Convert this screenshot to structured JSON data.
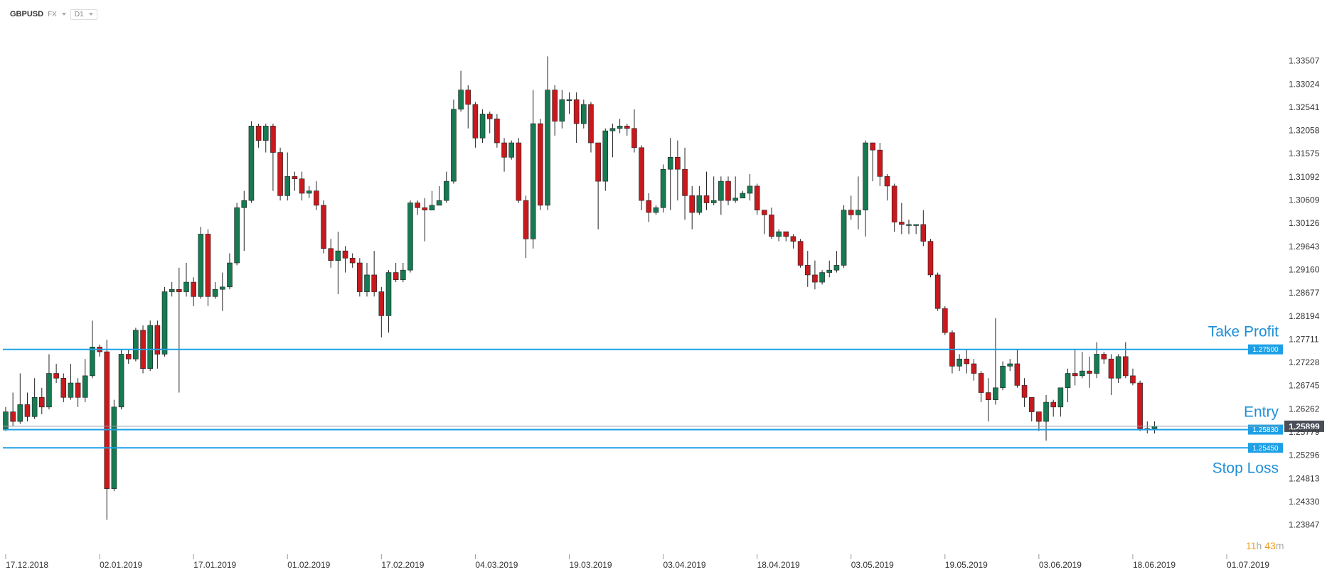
{
  "toolbar": {
    "symbol": "GBPUSD",
    "market": "FX",
    "timeframe": "D1"
  },
  "timer": {
    "hours": "11",
    "h_unit": "h",
    "minutes": "43",
    "m_unit": "m"
  },
  "colors": {
    "up": "#167a52",
    "down": "#c8191d",
    "level_line": "#1ea0e6",
    "level_tag": "#1ea0e6",
    "price_tag": "#4a4e57",
    "annotation": "#1e8fd6",
    "timer": "#f0a020"
  },
  "chart_data": {
    "type": "candlestick",
    "ylim": [
      1.2359,
      1.3399
    ],
    "y_ticks": [
      "1.33507",
      "1.33024",
      "1.32541",
      "1.32058",
      "1.31575",
      "1.31092",
      "1.30609",
      "1.30126",
      "1.29643",
      "1.29160",
      "1.28677",
      "1.28194",
      "1.27711",
      "1.27228",
      "1.26745",
      "1.26262",
      "1.25779",
      "1.25296",
      "1.24813",
      "1.24330",
      "1.23847"
    ],
    "x_tick_labels": [
      "17.12.2018",
      "02.01.2019",
      "17.01.2019",
      "01.02.2019",
      "17.02.2019",
      "04.03.2019",
      "19.03.2019",
      "03.04.2019",
      "18.04.2019",
      "03.05.2019",
      "19.05.2019",
      "03.06.2019",
      "18.06.2019",
      "01.07.2019"
    ],
    "x_tick_index": [
      0,
      13,
      26,
      39,
      52,
      65,
      78,
      91,
      104,
      117,
      130,
      143,
      156,
      169
    ],
    "last_price": "1.25899",
    "levels": [
      {
        "name": "take-profit",
        "price": 1.275,
        "tag": "1.27500",
        "label": "Take Profit"
      },
      {
        "name": "entry",
        "price": 1.2583,
        "tag": "1.25830",
        "label": "Entry"
      },
      {
        "name": "stop-loss",
        "price": 1.2545,
        "tag": "1.25450",
        "label": "Stop Loss"
      }
    ],
    "candles": [
      [
        1.2585,
        1.262,
        1.263,
        1.258
      ],
      [
        1.262,
        1.26,
        1.266,
        1.259
      ],
      [
        1.26,
        1.2635,
        1.27,
        1.2595
      ],
      [
        1.2635,
        1.261,
        1.266,
        1.26
      ],
      [
        1.261,
        1.265,
        1.269,
        1.2605
      ],
      [
        1.265,
        1.263,
        1.267,
        1.2615
      ],
      [
        1.263,
        1.27,
        1.274,
        1.2625
      ],
      [
        1.27,
        1.269,
        1.272,
        1.268
      ],
      [
        1.269,
        1.265,
        1.27,
        1.264
      ],
      [
        1.265,
        1.268,
        1.272,
        1.2645
      ],
      [
        1.268,
        1.265,
        1.269,
        1.263
      ],
      [
        1.265,
        1.2695,
        1.273,
        1.264
      ],
      [
        1.2695,
        1.2755,
        1.281,
        1.269
      ],
      [
        1.2755,
        1.2745,
        1.276,
        1.2735
      ],
      [
        1.2745,
        1.246,
        1.277,
        1.2395
      ],
      [
        1.246,
        1.263,
        1.2645,
        1.2455
      ],
      [
        1.263,
        1.274,
        1.275,
        1.2625
      ],
      [
        1.274,
        1.273,
        1.275,
        1.272
      ],
      [
        1.273,
        1.279,
        1.2795,
        1.2725
      ],
      [
        1.279,
        1.271,
        1.28,
        1.27
      ],
      [
        1.271,
        1.28,
        1.281,
        1.2705
      ],
      [
        1.28,
        1.274,
        1.281,
        1.271
      ],
      [
        1.274,
        1.287,
        1.288,
        1.2735
      ],
      [
        1.287,
        1.2875,
        1.289,
        1.286
      ],
      [
        1.2875,
        1.287,
        1.292,
        1.266
      ],
      [
        1.287,
        1.289,
        1.293,
        1.286
      ],
      [
        1.289,
        1.286,
        1.29,
        1.284
      ],
      [
        1.286,
        1.299,
        1.3005,
        1.2855
      ],
      [
        1.299,
        1.286,
        1.3,
        1.284
      ],
      [
        1.286,
        1.2875,
        1.289,
        1.2855
      ],
      [
        1.2875,
        1.288,
        1.291,
        1.283
      ],
      [
        1.288,
        1.293,
        1.295,
        1.2875
      ],
      [
        1.293,
        1.3045,
        1.3055,
        1.2925
      ],
      [
        1.3045,
        1.306,
        1.308,
        1.2955
      ],
      [
        1.306,
        1.3215,
        1.3225,
        1.3055
      ],
      [
        1.3215,
        1.3185,
        1.322,
        1.317
      ],
      [
        1.3185,
        1.3215,
        1.322,
        1.316
      ],
      [
        1.3215,
        1.316,
        1.322,
        1.308
      ],
      [
        1.316,
        1.307,
        1.317,
        1.306
      ],
      [
        1.307,
        1.311,
        1.316,
        1.306
      ],
      [
        1.311,
        1.3105,
        1.312,
        1.308
      ],
      [
        1.3105,
        1.3075,
        1.312,
        1.306
      ],
      [
        1.3075,
        1.308,
        1.309,
        1.3065
      ],
      [
        1.308,
        1.305,
        1.31,
        1.304
      ],
      [
        1.305,
        1.296,
        1.306,
        1.295
      ],
      [
        1.296,
        1.2935,
        1.298,
        1.292
      ],
      [
        1.2935,
        1.2955,
        1.2995,
        1.2865
      ],
      [
        1.2955,
        1.294,
        1.2965,
        1.291
      ],
      [
        1.294,
        1.293,
        1.295,
        1.292
      ],
      [
        1.293,
        1.287,
        1.294,
        1.286
      ],
      [
        1.287,
        1.2905,
        1.293,
        1.286
      ],
      [
        1.2905,
        1.287,
        1.2955,
        1.286
      ],
      [
        1.287,
        1.282,
        1.288,
        1.2775
      ],
      [
        1.282,
        1.291,
        1.2915,
        1.2785
      ],
      [
        1.291,
        1.2895,
        1.293,
        1.289
      ],
      [
        1.2895,
        1.2915,
        1.293,
        1.289
      ],
      [
        1.2915,
        1.3055,
        1.306,
        1.291
      ],
      [
        1.3055,
        1.3045,
        1.306,
        1.303
      ],
      [
        1.3045,
        1.304,
        1.3065,
        1.2975
      ],
      [
        1.304,
        1.305,
        1.308,
        1.304
      ],
      [
        1.305,
        1.306,
        1.309,
        1.305
      ],
      [
        1.306,
        1.31,
        1.312,
        1.3055
      ],
      [
        1.31,
        1.325,
        1.327,
        1.3095
      ],
      [
        1.325,
        1.329,
        1.333,
        1.3245
      ],
      [
        1.329,
        1.326,
        1.33,
        1.321
      ],
      [
        1.326,
        1.319,
        1.3265,
        1.317
      ],
      [
        1.319,
        1.324,
        1.325,
        1.318
      ],
      [
        1.324,
        1.323,
        1.3245,
        1.32
      ],
      [
        1.323,
        1.318,
        1.324,
        1.317
      ],
      [
        1.318,
        1.315,
        1.319,
        1.312
      ],
      [
        1.315,
        1.318,
        1.3185,
        1.3145
      ],
      [
        1.318,
        1.306,
        1.319,
        1.3055
      ],
      [
        1.306,
        1.298,
        1.307,
        1.294
      ],
      [
        1.298,
        1.322,
        1.329,
        1.296
      ],
      [
        1.322,
        1.305,
        1.323,
        1.304
      ],
      [
        1.305,
        1.329,
        1.336,
        1.304
      ],
      [
        1.329,
        1.3225,
        1.33,
        1.3195
      ],
      [
        1.3225,
        1.327,
        1.329,
        1.321
      ],
      [
        1.327,
        1.327,
        1.3285,
        1.324
      ],
      [
        1.327,
        1.322,
        1.3285,
        1.318
      ],
      [
        1.322,
        1.326,
        1.327,
        1.321
      ],
      [
        1.326,
        1.318,
        1.3265,
        1.316
      ],
      [
        1.318,
        1.31,
        1.318,
        1.3
      ],
      [
        1.31,
        1.3205,
        1.321,
        1.308
      ],
      [
        1.3205,
        1.321,
        1.322,
        1.315
      ],
      [
        1.321,
        1.3215,
        1.323,
        1.32
      ],
      [
        1.3215,
        1.321,
        1.322,
        1.3195
      ],
      [
        1.321,
        1.317,
        1.325,
        1.316
      ],
      [
        1.317,
        1.306,
        1.3175,
        1.304
      ],
      [
        1.306,
        1.3035,
        1.3075,
        1.3015
      ],
      [
        1.3035,
        1.3045,
        1.305,
        1.303
      ],
      [
        1.3045,
        1.3125,
        1.3135,
        1.3035
      ],
      [
        1.3125,
        1.315,
        1.319,
        1.304
      ],
      [
        1.315,
        1.3125,
        1.3185,
        1.306
      ],
      [
        1.3125,
        1.307,
        1.317,
        1.302
      ],
      [
        1.307,
        1.3035,
        1.309,
        1.3
      ],
      [
        1.3035,
        1.307,
        1.309,
        1.303
      ],
      [
        1.307,
        1.3055,
        1.312,
        1.304
      ],
      [
        1.3055,
        1.306,
        1.311,
        1.305
      ],
      [
        1.306,
        1.31,
        1.311,
        1.303
      ],
      [
        1.31,
        1.306,
        1.311,
        1.305
      ],
      [
        1.306,
        1.3065,
        1.311,
        1.3055
      ],
      [
        1.3065,
        1.3075,
        1.308,
        1.3065
      ],
      [
        1.3075,
        1.309,
        1.3115,
        1.306
      ],
      [
        1.309,
        1.304,
        1.3095,
        1.303
      ],
      [
        1.304,
        1.303,
        1.304,
        1.299
      ],
      [
        1.303,
        1.2985,
        1.3045,
        1.298
      ],
      [
        1.2985,
        1.2995,
        1.3,
        1.2975
      ],
      [
        1.2995,
        1.2985,
        1.2995,
        1.2975
      ],
      [
        1.2985,
        1.2975,
        1.299,
        1.296
      ],
      [
        1.2975,
        1.2925,
        1.298,
        1.292
      ],
      [
        1.2925,
        1.2905,
        1.2955,
        1.288
      ],
      [
        1.2905,
        1.289,
        1.2935,
        1.2875
      ],
      [
        1.289,
        1.291,
        1.2915,
        1.2885
      ],
      [
        1.291,
        1.2915,
        1.2935,
        1.29
      ],
      [
        1.2915,
        1.2925,
        1.2955,
        1.291
      ],
      [
        1.2925,
        1.304,
        1.305,
        1.292
      ],
      [
        1.304,
        1.303,
        1.307,
        1.302
      ],
      [
        1.303,
        1.304,
        1.311,
        1.3
      ],
      [
        1.304,
        1.318,
        1.3185,
        1.2985
      ],
      [
        1.318,
        1.3165,
        1.318,
        1.31
      ],
      [
        1.3165,
        1.311,
        1.318,
        1.309
      ],
      [
        1.311,
        1.309,
        1.3115,
        1.306
      ],
      [
        1.309,
        1.3015,
        1.3095,
        1.2995
      ],
      [
        1.3015,
        1.301,
        1.3055,
        1.299
      ],
      [
        1.301,
        1.301,
        1.302,
        1.299
      ],
      [
        1.301,
        1.301,
        1.301,
        1.299
      ],
      [
        1.301,
        1.2975,
        1.304,
        1.2965
      ],
      [
        1.2975,
        1.2905,
        1.298,
        1.29
      ],
      [
        1.2905,
        1.2835,
        1.291,
        1.283
      ],
      [
        1.2835,
        1.2785,
        1.284,
        1.278
      ],
      [
        1.2785,
        1.2715,
        1.279,
        1.27
      ],
      [
        1.2715,
        1.273,
        1.274,
        1.2705
      ],
      [
        1.273,
        1.272,
        1.275,
        1.27
      ],
      [
        1.272,
        1.27,
        1.273,
        1.2685
      ],
      [
        1.27,
        1.266,
        1.2705,
        1.264
      ],
      [
        1.266,
        1.2645,
        1.269,
        1.26
      ],
      [
        1.2645,
        1.267,
        1.2815,
        1.2635
      ],
      [
        1.267,
        1.2715,
        1.2725,
        1.2665
      ],
      [
        1.2715,
        1.272,
        1.273,
        1.2705
      ],
      [
        1.272,
        1.2675,
        1.275,
        1.267
      ],
      [
        1.2675,
        1.265,
        1.269,
        1.263
      ],
      [
        1.265,
        1.262,
        1.265,
        1.26
      ],
      [
        1.262,
        1.26,
        1.262,
        1.258
      ],
      [
        1.26,
        1.264,
        1.2655,
        1.256
      ],
      [
        1.264,
        1.263,
        1.2645,
        1.261
      ],
      [
        1.263,
        1.267,
        1.267,
        1.261
      ],
      [
        1.267,
        1.27,
        1.271,
        1.264
      ],
      [
        1.27,
        1.2695,
        1.275,
        1.2675
      ],
      [
        1.2695,
        1.2705,
        1.2745,
        1.269
      ],
      [
        1.2705,
        1.27,
        1.2735,
        1.267
      ],
      [
        1.27,
        1.274,
        1.2765,
        1.269
      ],
      [
        1.274,
        1.273,
        1.2745,
        1.272
      ],
      [
        1.273,
        1.269,
        1.274,
        1.2655
      ],
      [
        1.269,
        1.2735,
        1.274,
        1.268
      ],
      [
        1.2735,
        1.2695,
        1.2765,
        1.269
      ],
      [
        1.2695,
        1.268,
        1.271,
        1.2675
      ],
      [
        1.268,
        1.2585,
        1.2685,
        1.258
      ],
      [
        1.2585,
        1.2585,
        1.26,
        1.2575
      ],
      [
        1.2585,
        1.259,
        1.26,
        1.2575
      ]
    ]
  }
}
